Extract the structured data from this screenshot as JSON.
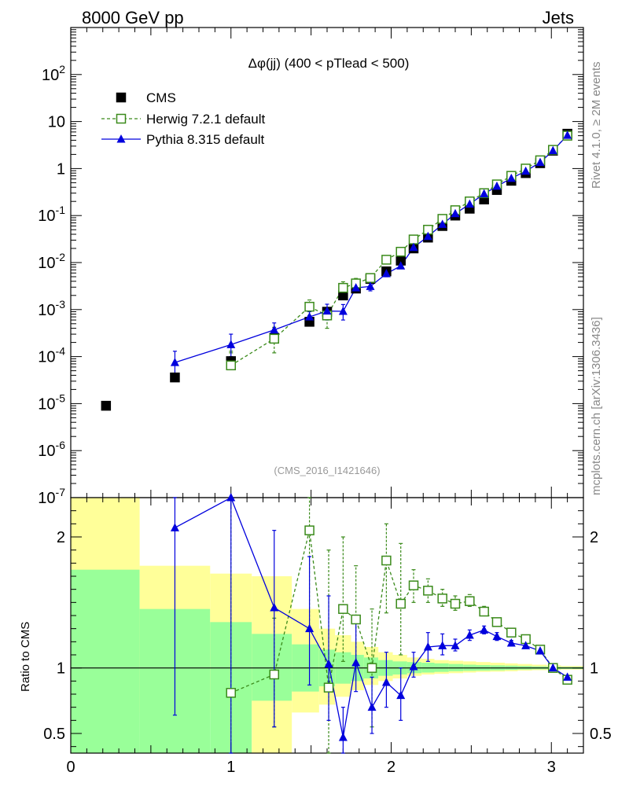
{
  "header": {
    "left": "8000 GeV pp",
    "right": "Jets"
  },
  "side_labels": {
    "rivet": "Rivet 4.1.0, ≥ 2M events",
    "mcplots": "mcplots.cern.ch [arXiv:1306.3436]"
  },
  "ylabel_ratio": "Ratio to CMS",
  "colors": {
    "cms": "#000000",
    "herwig": "#3a8a1a",
    "pythia": "#0000dd",
    "band_inner": "#99ff99",
    "band_outer": "#ffff99"
  },
  "chart_data": [
    {
      "type": "scatter",
      "panel": "main",
      "title": "Δφ(jj) (400 < pTlead <  500)",
      "watermark": "(CMS_2016_I1421646)",
      "xlim": [
        0,
        3.2
      ],
      "ylim": [
        1e-07,
        1000
      ],
      "yscale": "log",
      "ytick_labels": [
        "10^-7",
        "10^-6",
        "10^-5",
        "10^-4",
        "10^-3",
        "10^-2",
        "10^-1",
        "1",
        "10",
        "10^2"
      ],
      "legend": {
        "position": "top-left",
        "entries": [
          "CMS",
          "Herwig 7.2.1 default",
          "Pythia 8.315 default"
        ]
      },
      "series": [
        {
          "name": "CMS",
          "style": "black-square",
          "x": [
            0.22,
            0.65,
            1.0,
            1.27,
            1.49,
            1.6,
            1.7,
            1.78,
            1.87,
            1.97,
            2.06,
            2.14,
            2.23,
            2.32,
            2.4,
            2.49,
            2.58,
            2.66,
            2.75,
            2.84,
            2.93,
            3.01,
            3.1
          ],
          "y": [
            9e-06,
            3.6e-05,
            8e-05,
            0.00025,
            0.00055,
            0.0009,
            0.002,
            0.0028,
            0.0045,
            0.0065,
            0.011,
            0.02,
            0.034,
            0.06,
            0.1,
            0.14,
            0.22,
            0.35,
            0.55,
            0.8,
            1.3,
            2.4,
            5.5
          ]
        },
        {
          "name": "Herwig 7.2.1 default",
          "style": "green-open-square-dashed",
          "x": [
            1.0,
            1.27,
            1.49,
            1.6,
            1.7,
            1.78,
            1.87,
            1.97,
            2.06,
            2.14,
            2.23,
            2.32,
            2.4,
            2.49,
            2.58,
            2.66,
            2.75,
            2.84,
            2.93,
            3.01,
            3.1
          ],
          "y": [
            6.5e-05,
            0.00024,
            0.00115,
            0.00075,
            0.0029,
            0.0036,
            0.0047,
            0.0115,
            0.017,
            0.031,
            0.05,
            0.085,
            0.13,
            0.2,
            0.3,
            0.46,
            0.7,
            1.0,
            1.5,
            2.5,
            5.0
          ],
          "err_lo": [
            0.00012,
            0.00012,
            0.00075,
            0.0004,
            0.0019,
            0.0027,
            0.0038,
            0.01,
            0.015,
            0.028,
            0.046,
            0.08,
            0.122,
            0.19,
            0.29,
            0.44,
            0.68,
            0.98,
            1.47,
            2.46,
            4.95
          ],
          "err_hi": [
            0.00013,
            0.00042,
            0.0016,
            0.0011,
            0.0039,
            0.0046,
            0.0058,
            0.0132,
            0.019,
            0.034,
            0.054,
            0.09,
            0.138,
            0.21,
            0.31,
            0.48,
            0.72,
            1.02,
            1.53,
            2.54,
            5.05
          ]
        },
        {
          "name": "Pythia 8.315 default",
          "style": "blue-triangle-solid",
          "x": [
            0.65,
            1.0,
            1.27,
            1.49,
            1.6,
            1.7,
            1.78,
            1.87,
            1.97,
            2.06,
            2.14,
            2.23,
            2.32,
            2.4,
            2.49,
            2.58,
            2.66,
            2.75,
            2.84,
            2.93,
            3.01,
            3.1
          ],
          "y": [
            7.5e-05,
            0.00018,
            0.00037,
            0.0007,
            0.00093,
            0.00092,
            0.0029,
            0.0031,
            0.0058,
            0.0085,
            0.021,
            0.036,
            0.065,
            0.11,
            0.175,
            0.29,
            0.42,
            0.62,
            0.88,
            1.35,
            2.4,
            5.1
          ],
          "err_lo": [
            4e-05,
            0.0001,
            0.00023,
            0.0005,
            0.0006,
            0.0006,
            0.0023,
            0.0025,
            0.005,
            0.0077,
            0.0195,
            0.034,
            0.062,
            0.106,
            0.17,
            0.285,
            0.415,
            0.615,
            0.875,
            1.34,
            2.39,
            5.08
          ],
          "err_hi": [
            0.00013,
            0.0003,
            0.00052,
            0.0009,
            0.0013,
            0.00128,
            0.0035,
            0.0038,
            0.0066,
            0.0093,
            0.0225,
            0.038,
            0.068,
            0.114,
            0.18,
            0.295,
            0.425,
            0.625,
            0.885,
            1.36,
            2.41,
            5.12
          ]
        }
      ]
    },
    {
      "type": "line",
      "panel": "ratio",
      "ylabel": "Ratio to CMS",
      "xlim": [
        0,
        3.2
      ],
      "ylim": [
        0.35,
        2.3
      ],
      "xticks": [
        0,
        1,
        2,
        3
      ],
      "yticks": [
        0.5,
        1,
        2
      ],
      "bands": {
        "edges": [
          0,
          0.43,
          0.87,
          1.13,
          1.38,
          1.55,
          1.65,
          1.75,
          1.83,
          1.92,
          2.01,
          2.1,
          2.19,
          2.27,
          2.36,
          2.45,
          2.53,
          2.62,
          2.71,
          2.79,
          2.88,
          2.97,
          3.06,
          3.2
        ],
        "inner_lo": [
          0.33,
          0.33,
          0.33,
          0.75,
          0.82,
          0.86,
          0.88,
          0.9,
          0.92,
          0.94,
          0.95,
          0.96,
          0.965,
          0.97,
          0.975,
          0.978,
          0.98,
          0.982,
          0.985,
          0.988,
          0.99,
          0.99,
          0.992
        ],
        "inner_hi": [
          1.75,
          1.45,
          1.35,
          1.26,
          1.18,
          1.14,
          1.12,
          1.1,
          1.08,
          1.06,
          1.05,
          1.045,
          1.04,
          1.035,
          1.03,
          1.025,
          1.022,
          1.02,
          1.018,
          1.015,
          1.012,
          1.01,
          1.008
        ],
        "outer_lo": [
          0.33,
          0.66,
          0.61,
          0.33,
          0.66,
          0.72,
          0.78,
          0.83,
          0.87,
          0.9,
          0.92,
          0.94,
          0.95,
          0.955,
          0.96,
          0.965,
          0.97,
          0.972,
          0.975,
          0.98,
          0.983,
          0.985,
          0.988
        ],
        "outer_hi": [
          2.3,
          1.78,
          1.72,
          1.7,
          1.45,
          1.3,
          1.25,
          1.2,
          1.16,
          1.12,
          1.1,
          1.08,
          1.07,
          1.06,
          1.055,
          1.05,
          1.045,
          1.04,
          1.035,
          1.03,
          1.025,
          1.02,
          1.015
        ]
      },
      "series": [
        {
          "name": "Herwig 7.2.1 default",
          "x": [
            1.0,
            1.27,
            1.49,
            1.61,
            1.7,
            1.78,
            1.88,
            1.97,
            2.06,
            2.14,
            2.23,
            2.32,
            2.4,
            2.49,
            2.58,
            2.66,
            2.75,
            2.84,
            2.93,
            3.01,
            3.1
          ],
          "y": [
            0.81,
            0.95,
            2.05,
            0.85,
            1.45,
            1.37,
            1.0,
            1.82,
            1.49,
            1.63,
            1.59,
            1.53,
            1.49,
            1.51,
            1.43,
            1.35,
            1.27,
            1.22,
            1.14,
            1.0,
            0.91
          ],
          "err_lo": [
            0.0,
            0.55,
            1.3,
            0.0,
            1.05,
            1.0,
            0.55,
            1.42,
            1.1,
            1.5,
            1.5,
            1.47,
            1.44,
            1.47,
            1.4,
            1.32,
            1.25,
            1.2,
            1.12,
            0.99,
            0.9
          ],
          "err_hi": [
            2.4,
            1.38,
            2.4,
            1.9,
            2.0,
            1.78,
            1.45,
            2.1,
            1.95,
            1.75,
            1.68,
            1.6,
            1.55,
            1.56,
            1.47,
            1.38,
            1.3,
            1.24,
            1.16,
            1.01,
            0.92
          ]
        },
        {
          "name": "Pythia 8.315 default",
          "x": [
            0.65,
            1.0,
            1.27,
            1.49,
            1.61,
            1.7,
            1.78,
            1.88,
            1.97,
            2.06,
            2.14,
            2.23,
            2.32,
            2.4,
            2.49,
            2.58,
            2.66,
            2.75,
            2.84,
            2.93,
            3.01,
            3.1
          ],
          "y": [
            2.07,
            2.3,
            1.46,
            1.3,
            1.03,
            0.47,
            1.04,
            0.7,
            0.89,
            0.79,
            1.01,
            1.16,
            1.17,
            1.17,
            1.25,
            1.29,
            1.24,
            1.19,
            1.17,
            1.13,
            1.0,
            0.93
          ],
          "err_lo": [
            0.64,
            0.3,
            0.55,
            0.87,
            0.6,
            0.3,
            0.82,
            0.5,
            0.7,
            0.6,
            0.93,
            1.05,
            1.1,
            1.13,
            1.21,
            1.26,
            1.21,
            1.17,
            1.15,
            1.12,
            0.99,
            0.92
          ],
          "err_hi": [
            2.3,
            2.3,
            2.05,
            1.85,
            1.55,
            0.7,
            1.34,
            0.93,
            1.12,
            1.0,
            1.12,
            1.27,
            1.26,
            1.22,
            1.29,
            1.32,
            1.27,
            1.21,
            1.19,
            1.14,
            1.01,
            0.94
          ]
        }
      ]
    }
  ]
}
